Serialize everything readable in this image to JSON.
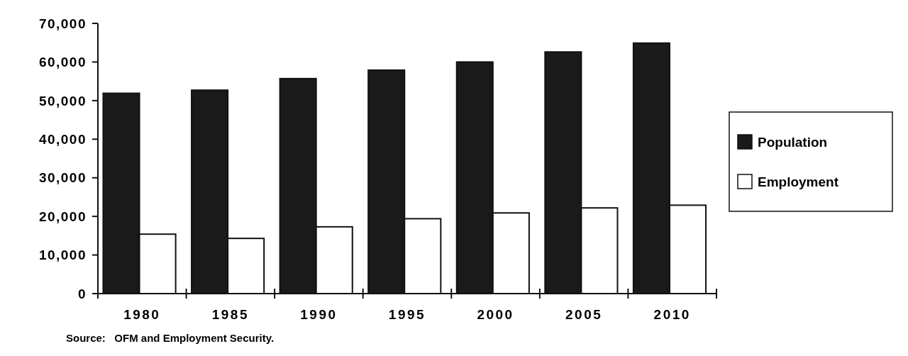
{
  "chart_data": {
    "type": "bar",
    "categories": [
      "1980",
      "1985",
      "1990",
      "1995",
      "2000",
      "2005",
      "2010"
    ],
    "series": [
      {
        "name": "Population",
        "color": "#1a1a1a",
        "values": [
          51900,
          52700,
          55700,
          57900,
          60000,
          62600,
          64900
        ]
      },
      {
        "name": "Employment",
        "color": "#ffffff",
        "values": [
          15400,
          14300,
          17300,
          19400,
          20900,
          22200,
          22900
        ]
      }
    ],
    "ylim": [
      0,
      70000
    ],
    "yticks": [
      {
        "value": 0,
        "label": "0"
      },
      {
        "value": 10000,
        "label": "10,000"
      },
      {
        "value": 20000,
        "label": "20,000"
      },
      {
        "value": 30000,
        "label": "30,000"
      },
      {
        "value": 40000,
        "label": "40,000"
      },
      {
        "value": 50000,
        "label": "50,000"
      },
      {
        "value": 60000,
        "label": "60,000"
      },
      {
        "value": 70000,
        "label": "70,000"
      }
    ],
    "grid": false,
    "legend": "right",
    "annotations": [
      "Source:   OFM and Employment Security."
    ]
  }
}
